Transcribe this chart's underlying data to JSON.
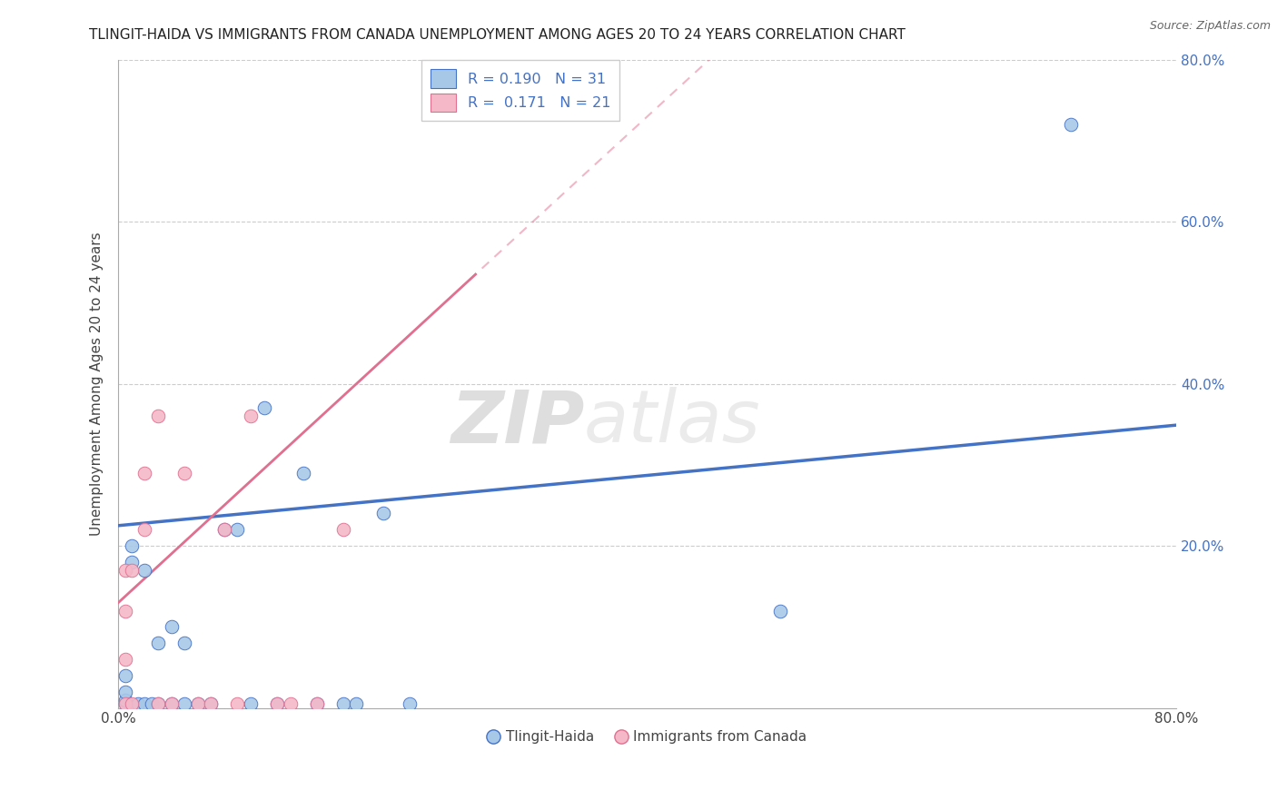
{
  "title": "TLINGIT-HAIDA VS IMMIGRANTS FROM CANADA UNEMPLOYMENT AMONG AGES 20 TO 24 YEARS CORRELATION CHART",
  "source": "Source: ZipAtlas.com",
  "ylabel": "Unemployment Among Ages 20 to 24 years",
  "xlim": [
    0.0,
    0.8
  ],
  "ylim": [
    0.0,
    0.8
  ],
  "watermark_zip": "ZIP",
  "watermark_atlas": "atlas",
  "legend_r1": "R = 0.190",
  "legend_n1": "N = 31",
  "legend_r2": "R =  0.171",
  "legend_n2": "N = 21",
  "color_blue": "#a8c8e8",
  "color_pink": "#f4b8c8",
  "trendline_blue_color": "#4472c4",
  "trendline_pink_color": "#e07090",
  "tlingit_x": [
    0.005,
    0.005,
    0.005,
    0.005,
    0.01,
    0.01,
    0.015,
    0.02,
    0.02,
    0.025,
    0.03,
    0.03,
    0.04,
    0.04,
    0.05,
    0.05,
    0.06,
    0.07,
    0.08,
    0.09,
    0.1,
    0.11,
    0.12,
    0.14,
    0.15,
    0.17,
    0.18,
    0.2,
    0.22,
    0.5,
    0.72
  ],
  "tlingit_y": [
    0.005,
    0.01,
    0.02,
    0.04,
    0.18,
    0.2,
    0.005,
    0.005,
    0.17,
    0.005,
    0.005,
    0.08,
    0.1,
    0.005,
    0.08,
    0.005,
    0.005,
    0.005,
    0.22,
    0.22,
    0.005,
    0.37,
    0.005,
    0.29,
    0.005,
    0.005,
    0.005,
    0.24,
    0.005,
    0.12,
    0.72
  ],
  "immigrants_x": [
    0.005,
    0.005,
    0.005,
    0.005,
    0.01,
    0.01,
    0.02,
    0.02,
    0.03,
    0.03,
    0.04,
    0.05,
    0.06,
    0.07,
    0.08,
    0.09,
    0.1,
    0.12,
    0.13,
    0.15,
    0.17
  ],
  "immigrants_y": [
    0.005,
    0.06,
    0.12,
    0.17,
    0.005,
    0.17,
    0.29,
    0.22,
    0.005,
    0.36,
    0.005,
    0.29,
    0.005,
    0.005,
    0.22,
    0.005,
    0.36,
    0.005,
    0.005,
    0.005,
    0.22
  ]
}
